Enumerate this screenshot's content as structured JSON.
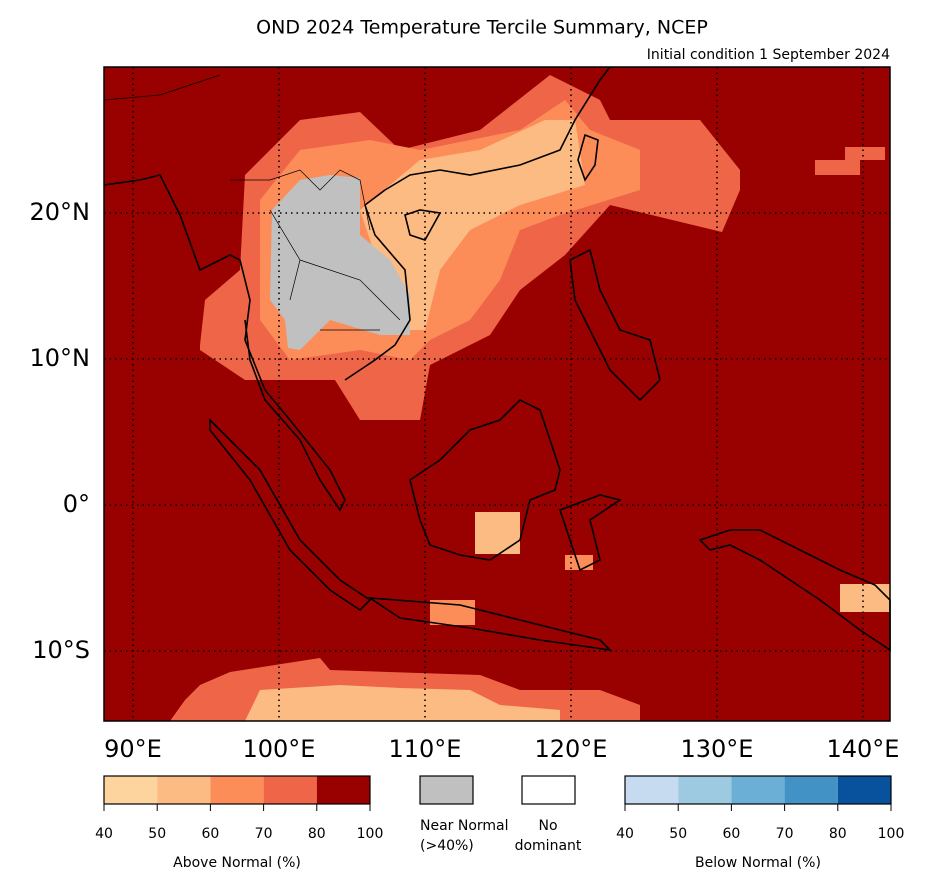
{
  "title": "OND 2024 Temperature Tercile Summary, NCEP",
  "subtitle": "Initial condition 1 September 2024",
  "map": {
    "lon_labels": [
      "90°E",
      "100°E",
      "110°E",
      "120°E",
      "130°E",
      "140°E"
    ],
    "lat_labels": [
      "20°N",
      "10°N",
      "0°",
      "10°S"
    ]
  },
  "legend": {
    "above": {
      "label": "Above Normal (%)",
      "colors": [
        "#fdd49e",
        "#fdbb84",
        "#fc8d59",
        "#ef6548",
        "#990000"
      ],
      "ticks": [
        40,
        50,
        60,
        70,
        80,
        100
      ]
    },
    "near": {
      "label_lines": [
        "Near Normal",
        "(>40%)"
      ],
      "color": "#c0c0c0"
    },
    "none": {
      "label_lines": [
        "No",
        "dominant"
      ],
      "color": "#ffffff"
    },
    "below": {
      "label": "Below Normal (%)",
      "colors": [
        "#c6dbef",
        "#9ecae1",
        "#6baed6",
        "#4292c6",
        "#08519c"
      ],
      "ticks": [
        40,
        50,
        60,
        70,
        80,
        100
      ]
    }
  }
}
